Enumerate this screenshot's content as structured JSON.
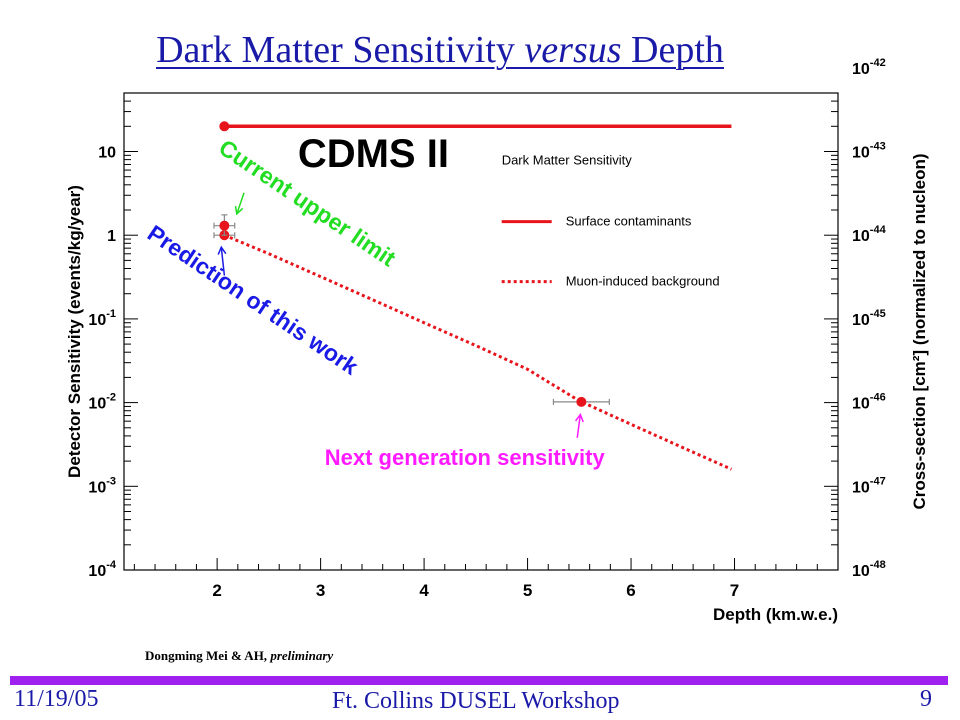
{
  "slide": {
    "title_part1": "Dark Matter Sensitivity ",
    "title_italic": "versus",
    "title_part2": " Depth",
    "credit_bold": "Dongming Mei & AH, ",
    "credit_italic": "preliminary",
    "footer_date": "11/19/05",
    "footer_event": "Ft. Collins DUSEL Workshop",
    "footer_page": "9"
  },
  "colors": {
    "title_text": "#1a1aa8",
    "footer_bar": "#a020f0",
    "data_red": "#e8141c",
    "annotation_green": "#22dd22",
    "annotation_blue": "#1a1ae6",
    "annotation_magenta": "#ff1aff"
  },
  "chart_data": {
    "type": "line",
    "title": "CDMS II",
    "legend_title": "Dark Matter Sensitivity",
    "legend_position": "top-right",
    "xlabel": "Depth (km.w.e.)",
    "ylabel": "Detector Sensitivity (events/kg/year)",
    "y2label": "Cross-section [cm²] (normalized to nucleon)",
    "xlim": [
      1.1,
      8.0
    ],
    "ylim": [
      0.0001,
      50
    ],
    "yscale": "log",
    "x_ticks": [
      "2",
      "3",
      "4",
      "5",
      "6",
      "7"
    ],
    "y_ticks": [
      {
        "base": "10",
        "exp": "-4",
        "value": 0.0001
      },
      {
        "base": "10",
        "exp": "-3",
        "value": 0.001
      },
      {
        "base": "10",
        "exp": "-2",
        "value": 0.01
      },
      {
        "base": "10",
        "exp": "-1",
        "value": 0.1
      },
      {
        "base": "1",
        "exp": "",
        "value": 1
      },
      {
        "base": "10",
        "exp": "",
        "value": 10
      }
    ],
    "y2_ticks": [
      {
        "base": "10",
        "exp": "-48",
        "value": 0.0001
      },
      {
        "base": "10",
        "exp": "-47",
        "value": 0.001
      },
      {
        "base": "10",
        "exp": "-46",
        "value": 0.01
      },
      {
        "base": "10",
        "exp": "-45",
        "value": 0.1
      },
      {
        "base": "10",
        "exp": "-44",
        "value": 1
      },
      {
        "base": "10",
        "exp": "-43",
        "value": 10
      },
      {
        "base": "10",
        "exp": "-42",
        "value": 100
      }
    ],
    "grid": false,
    "series": [
      {
        "name": "Surface contaminants",
        "style": "solid",
        "x": [
          2.07,
          6.97
        ],
        "y": [
          20,
          20
        ],
        "markers": [
          {
            "x": 2.07,
            "y": 20
          }
        ]
      },
      {
        "name": "Muon-induced background",
        "style": "dotted",
        "x": [
          2.07,
          2.5,
          3,
          3.5,
          4,
          4.5,
          5,
          5.5,
          6,
          6.5,
          6.97
        ],
        "y": [
          1.0,
          0.6,
          0.32,
          0.17,
          0.09,
          0.048,
          0.025,
          0.0105,
          0.0055,
          0.0029,
          0.0016
        ],
        "markers": [
          {
            "x": 2.07,
            "y": 1.0,
            "xerr": 0.1
          },
          {
            "x": 2.07,
            "y": 1.3,
            "xerr": 0.1,
            "yerr_up": 0.45,
            "yerr_down": 0.3
          },
          {
            "x": 5.52,
            "y": 0.0102,
            "xerr": 0.27
          }
        ]
      }
    ],
    "annotations": [
      {
        "text": "Current upper limit",
        "color": "green"
      },
      {
        "text": "Prediction of this work",
        "color": "blue"
      },
      {
        "text": "Next generation sensitivity",
        "color": "magenta"
      }
    ]
  }
}
